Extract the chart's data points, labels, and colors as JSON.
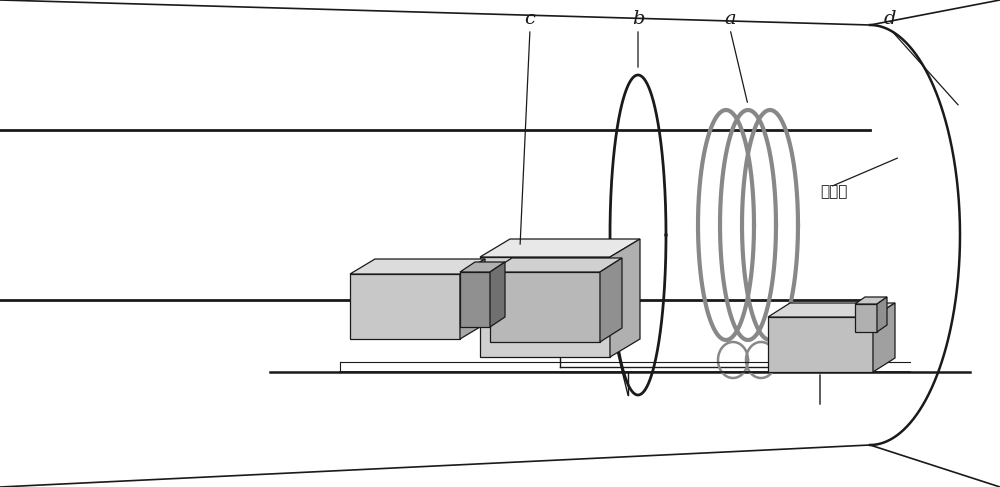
{
  "background_color": "#ffffff",
  "dark": "#1a1a1a",
  "gray_coil": "#888888",
  "box_face": "#c8c8c8",
  "box_top": "#e0e0e0",
  "box_side": "#a0a0a0",
  "label_a": "a",
  "label_b": "b",
  "label_c": "c",
  "label_d": "d",
  "chinese_label": "掌子面",
  "fig_width": 10.0,
  "fig_height": 4.87
}
